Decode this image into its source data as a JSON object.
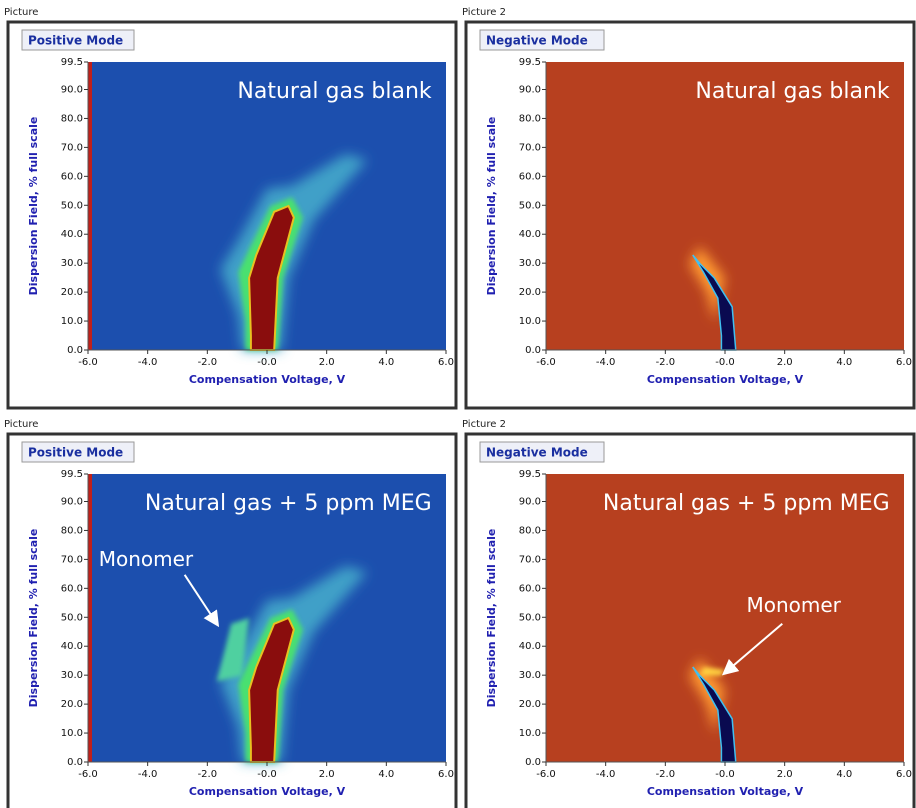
{
  "axes": {
    "x_label": "Compensation Voltage, V",
    "y_label": "Dispersion Field, % full scale",
    "xlim": [
      -6,
      6
    ],
    "ylim": [
      0,
      99.5
    ],
    "xticks": [
      {
        "value": -6,
        "label": "-6.0"
      },
      {
        "value": -4,
        "label": "-4.0"
      },
      {
        "value": -2,
        "label": "-2.0"
      },
      {
        "value": 0,
        "label": "-0.0"
      },
      {
        "value": 2,
        "label": "2.0"
      },
      {
        "value": 4,
        "label": "4.0"
      },
      {
        "value": 6,
        "label": "6.0"
      }
    ],
    "yticks": [
      {
        "value": 0,
        "label": "0.0"
      },
      {
        "value": 10,
        "label": "10.0"
      },
      {
        "value": 20,
        "label": "20.0"
      },
      {
        "value": 30,
        "label": "30.0"
      },
      {
        "value": 40,
        "label": "40.0"
      },
      {
        "value": 50,
        "label": "50.0"
      },
      {
        "value": 60,
        "label": "60.0"
      },
      {
        "value": 70,
        "label": "70.0"
      },
      {
        "value": 80,
        "label": "80.0"
      },
      {
        "value": 90,
        "label": "90.0"
      },
      {
        "value": 99.5,
        "label": "99.5"
      }
    ]
  },
  "panels": [
    {
      "caption": "Picture",
      "mode": "Positive Mode",
      "annotation": "Natural gas blank"
    },
    {
      "caption": "Picture 2",
      "mode": "Negative Mode",
      "annotation": "Natural gas blank"
    },
    {
      "caption": "Picture",
      "mode": "Positive Mode",
      "annotation": "Natural gas + 5 ppm MEG",
      "callout": "Monomer"
    },
    {
      "caption": "Picture 2",
      "mode": "Negative Mode",
      "annotation": "Natural gas + 5 ppm MEG",
      "callout": "Monomer"
    }
  ]
}
